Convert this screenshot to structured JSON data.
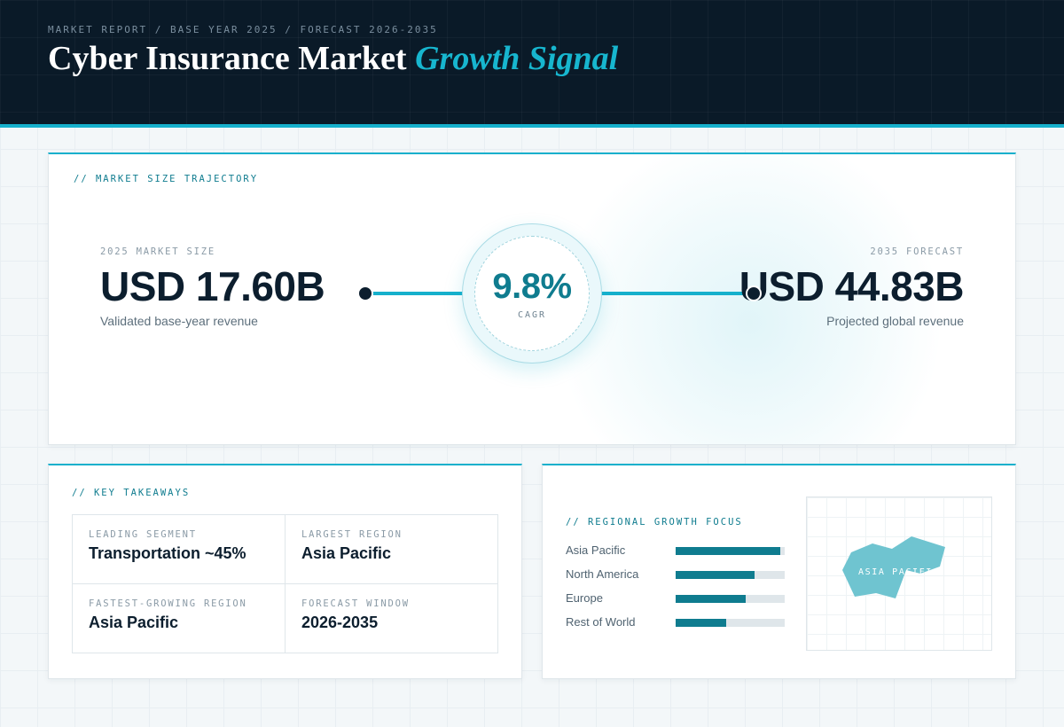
{
  "header": {
    "breadcrumb": "MARKET REPORT / BASE YEAR 2025 / FORECAST 2026-2035",
    "title_main": "Cyber Insurance Market ",
    "title_accent": "Growth Signal"
  },
  "trajectory": {
    "section_label": "// MARKET SIZE TRAJECTORY",
    "base": {
      "label": "2025 MARKET SIZE",
      "value": "USD 17.60B",
      "caption": "Validated base-year revenue"
    },
    "forecast": {
      "label": "2035 FORECAST",
      "value": "USD 44.83B",
      "caption": "Projected global revenue"
    },
    "cagr": {
      "value": "9.8%",
      "label": "CAGR"
    }
  },
  "takeaways": {
    "section_label": "// KEY TAKEAWAYS",
    "items": [
      {
        "label": "LEADING SEGMENT",
        "value": "Transportation ~45%"
      },
      {
        "label": "LARGEST REGION",
        "value": "Asia Pacific"
      },
      {
        "label": "FASTEST-GROWING REGION",
        "value": "Asia Pacific"
      },
      {
        "label": "FORECAST WINDOW",
        "value": "2026-2035"
      }
    ]
  },
  "regional": {
    "section_label": "// REGIONAL GROWTH FOCUS",
    "regions": [
      {
        "name": "Asia Pacific",
        "share": 0.96
      },
      {
        "name": "North America",
        "share": 0.72
      },
      {
        "name": "Europe",
        "share": 0.64
      },
      {
        "name": "Rest of World",
        "share": 0.46
      }
    ],
    "map_label": "ASIA PACIFIC"
  },
  "colors": {
    "header_bg": "#0a1a28",
    "accent": "#16b0cc",
    "teal_dark": "#0f7c8f",
    "map_fill": "#6fc4d0",
    "text_dark": "#0c1e2e"
  }
}
